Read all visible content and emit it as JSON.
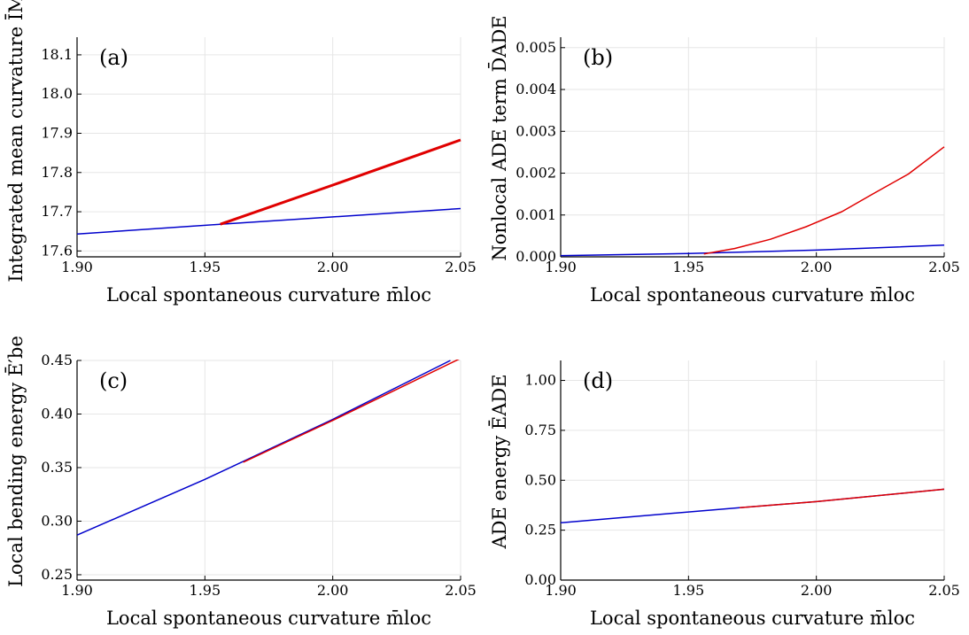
{
  "chart_data": [
    {
      "type": "line",
      "panel_label": "(a)",
      "xlabel": "Local spontaneous curvature m̄loc",
      "ylabel": "Integrated mean curvature ĪM",
      "xlim": [
        1.9,
        2.05
      ],
      "ylim": [
        17.585,
        18.145
      ],
      "xticks": [
        "1.90",
        "1.95",
        "2.00",
        "2.05"
      ],
      "yticks": [
        "17.6",
        "17.7",
        "17.8",
        "17.9",
        "18.0",
        "18.1"
      ],
      "grid": true,
      "series": [
        {
          "color": "#0000cc",
          "width": 1.5,
          "x": [
            1.9,
            1.956,
            2.05
          ],
          "y": [
            17.643,
            17.668,
            17.708
          ]
        },
        {
          "color": "#e00000",
          "width": 3,
          "x": [
            1.956,
            2.0,
            2.05
          ],
          "y": [
            17.668,
            17.768,
            17.883
          ]
        }
      ]
    },
    {
      "type": "line",
      "panel_label": "(b)",
      "xlabel": "Local spontaneous curvature m̄loc",
      "ylabel": "Nonlocal ADE term D̄ADE",
      "xlim": [
        1.9,
        2.05
      ],
      "ylim": [
        0.0,
        0.00525
      ],
      "xticks": [
        "1.90",
        "1.95",
        "2.00",
        "2.05"
      ],
      "yticks": [
        "0.000",
        "0.001",
        "0.002",
        "0.003",
        "0.004",
        "0.005"
      ],
      "grid": true,
      "series": [
        {
          "color": "#0000cc",
          "width": 1.5,
          "x": [
            1.9,
            1.95,
            2.0,
            2.05
          ],
          "y": [
            3e-05,
            8e-05,
            0.00016,
            0.00028
          ]
        },
        {
          "color": "#e00000",
          "width": 1.5,
          "x": [
            1.956,
            1.968,
            1.982,
            1.996,
            2.01,
            2.022,
            2.036,
            2.05
          ],
          "y": [
            7e-05,
            0.0002,
            0.00042,
            0.00072,
            0.00108,
            0.0015,
            0.00198,
            0.00263
          ]
        }
      ]
    },
    {
      "type": "line",
      "panel_label": "(c)",
      "xlabel": "Local spontaneous curvature m̄loc",
      "ylabel": "Local bending energy Ē′be",
      "xlim": [
        1.9,
        2.05
      ],
      "ylim": [
        0.245,
        0.45
      ],
      "xticks": [
        "1.90",
        "1.95",
        "2.00",
        "2.05"
      ],
      "yticks": [
        "0.25",
        "0.30",
        "0.35",
        "0.40",
        "0.45"
      ],
      "grid": true,
      "series": [
        {
          "color": "#0000cc",
          "width": 1.5,
          "x": [
            1.9,
            1.95,
            2.0,
            2.046
          ],
          "y": [
            0.287,
            0.339,
            0.395,
            0.45
          ]
        },
        {
          "color": "#e00000",
          "width": 1.5,
          "x": [
            1.965,
            2.0,
            2.05
          ],
          "y": [
            0.355,
            0.394,
            0.452
          ]
        }
      ]
    },
    {
      "type": "line",
      "panel_label": "(d)",
      "xlabel": "Local spontaneous curvature m̄loc",
      "ylabel": "ADE energy ĒADE",
      "xlim": [
        1.9,
        2.05
      ],
      "ylim": [
        0.0,
        1.1
      ],
      "xticks": [
        "1.90",
        "1.95",
        "2.00",
        "2.05"
      ],
      "yticks": [
        "0.00",
        "0.25",
        "0.50",
        "0.75",
        "1.00"
      ],
      "grid": true,
      "series": [
        {
          "color": "#0000cc",
          "width": 1.5,
          "x": [
            1.9,
            1.97,
            2.0,
            2.05
          ],
          "y": [
            0.287,
            0.363,
            0.393,
            0.455
          ]
        },
        {
          "color": "#e00000",
          "width": 1.5,
          "x": [
            1.97,
            2.0,
            2.05
          ],
          "y": [
            0.363,
            0.393,
            0.455
          ]
        }
      ]
    }
  ]
}
